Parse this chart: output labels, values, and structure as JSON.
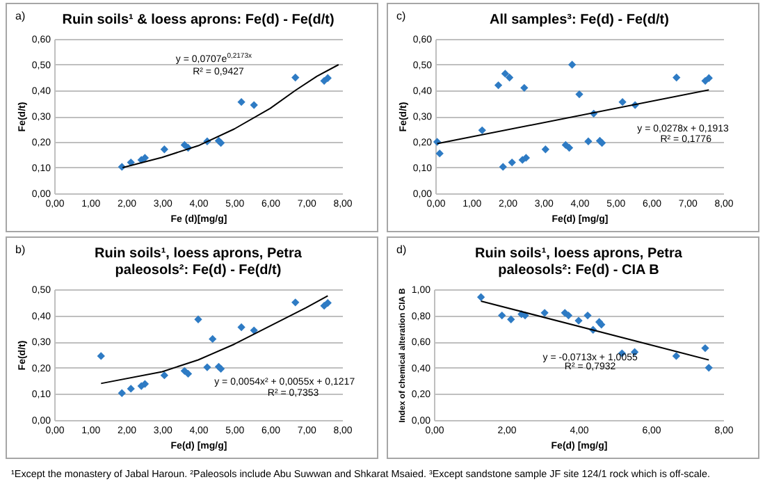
{
  "chart_data": [
    {
      "type": "scatter",
      "title": "Ruin soils¹ & loess aprons: Fe(d) - Fe(d/t)",
      "xlabel": "Fe (d)[mg/g]",
      "ylabel": "Fe(d/t)",
      "annotations": [
        "a)",
        "y = 0,0707e$^{0,2173x}$",
        "R² = 0,9427"
      ],
      "xlim": [
        0,
        8
      ],
      "xticks": [
        {
          "value": 0,
          "label": "0,00"
        },
        {
          "value": 1,
          "label": "1,00"
        },
        {
          "value": 2,
          "label": "2,00"
        },
        {
          "value": 3,
          "label": "3,00"
        },
        {
          "value": 4,
          "label": "4,00"
        },
        {
          "value": 5,
          "label": "5,00"
        },
        {
          "value": 6,
          "label": "6,00"
        },
        {
          "value": 7,
          "label": "7,00"
        },
        {
          "value": 8,
          "label": "8,00"
        }
      ],
      "ylim": [
        0,
        0.6
      ],
      "yticks": [
        {
          "value": 0,
          "label": "0,00"
        },
        {
          "value": 0.1,
          "label": "0,10"
        },
        {
          "value": 0.2,
          "label": "0,20"
        },
        {
          "value": 0.3,
          "label": "0,30"
        },
        {
          "value": 0.4,
          "label": "0,40"
        },
        {
          "value": 0.5,
          "label": "0,50"
        },
        {
          "value": 0.6,
          "label": "0,60"
        }
      ],
      "grid": "y",
      "line_style": "solid",
      "series": [
        {
          "type": "scatter",
          "marker": "diamond",
          "color": "#2e7bc4",
          "x": [
            1.88,
            2.13,
            2.42,
            2.52,
            3.06,
            3.62,
            3.72,
            4.25,
            4.57,
            4.63,
            5.2,
            5.55,
            6.7,
            7.5,
            7.6
          ],
          "values": [
            0.103,
            0.12,
            0.13,
            0.138,
            0.171,
            0.188,
            0.177,
            0.202,
            0.204,
            0.196,
            0.355,
            0.343,
            0.45,
            0.437,
            0.448
          ]
        },
        {
          "type": "line",
          "color": "#000000",
          "x": [
            1.9,
            3,
            4,
            5,
            6,
            6.7,
            7.3,
            7.9
          ],
          "values": [
            0.1,
            0.14,
            0.185,
            0.25,
            0.33,
            0.4,
            0.455,
            0.5
          ]
        }
      ]
    },
    {
      "type": "scatter",
      "title": "All samples³: Fe(d) - Fe(d/t)",
      "xlabel": "Fe(d) [mg/g]",
      "ylabel": "Fe(d/t)",
      "annotations": [
        "c)",
        "y = 0,0278x + 0,1913",
        "R² = 0,1776"
      ],
      "xlim": [
        0,
        8
      ],
      "xticks": [
        {
          "value": 0,
          "label": "0,00"
        },
        {
          "value": 1,
          "label": "1,00"
        },
        {
          "value": 2,
          "label": "2,00"
        },
        {
          "value": 3,
          "label": "3,00"
        },
        {
          "value": 4,
          "label": "4,00"
        },
        {
          "value": 5,
          "label": "5,00"
        },
        {
          "value": 6,
          "label": "6,00"
        },
        {
          "value": 7,
          "label": "7,00"
        },
        {
          "value": 8,
          "label": "8,00"
        }
      ],
      "ylim": [
        0,
        0.6
      ],
      "yticks": [
        {
          "value": 0,
          "label": "0,00"
        },
        {
          "value": 0.1,
          "label": "0,10"
        },
        {
          "value": 0.2,
          "label": "0,20"
        },
        {
          "value": 0.3,
          "label": "0,30"
        },
        {
          "value": 0.4,
          "label": "0,40"
        },
        {
          "value": 0.5,
          "label": "0,50"
        },
        {
          "value": 0.6,
          "label": "0,60"
        }
      ],
      "grid": "y",
      "line_style": "solid",
      "series": [
        {
          "type": "scatter",
          "marker": "diamond",
          "color": "#2e7bc4",
          "x": [
            0.05,
            0.12,
            1.3,
            1.75,
            1.94,
            2.06,
            2.47,
            1.88,
            2.13,
            2.42,
            2.52,
            3.06,
            3.62,
            3.72,
            3.8,
            4.0,
            4.25,
            4.4,
            4.57,
            4.63,
            5.2,
            5.55,
            6.7,
            7.5,
            7.6
          ],
          "values": [
            0.2,
            0.155,
            0.245,
            0.42,
            0.465,
            0.45,
            0.41,
            0.103,
            0.12,
            0.13,
            0.138,
            0.171,
            0.188,
            0.177,
            0.5,
            0.385,
            0.202,
            0.31,
            0.204,
            0.196,
            0.355,
            0.343,
            0.45,
            0.437,
            0.448
          ]
        },
        {
          "type": "line",
          "color": "#000000",
          "x": [
            0.05,
            7.6
          ],
          "values": [
            0.193,
            0.402
          ]
        }
      ]
    },
    {
      "type": "scatter",
      "title": "Ruin soils¹, loess aprons, Petra paleosols²: Fe(d) - Fe(d/t)",
      "xlabel": "Fe(d) [mg/g]",
      "ylabel": "Fe(d/t)",
      "annotations": [
        "b)",
        "y = 0,0054x² + 0,0055x + 0,1217",
        "R² = 0,7353"
      ],
      "xlim": [
        0,
        8
      ],
      "xticks": [
        {
          "value": 0,
          "label": "0,00"
        },
        {
          "value": 1,
          "label": "1,00"
        },
        {
          "value": 2,
          "label": "2,00"
        },
        {
          "value": 3,
          "label": "3,00"
        },
        {
          "value": 4,
          "label": "4,00"
        },
        {
          "value": 5,
          "label": "5,00"
        },
        {
          "value": 6,
          "label": "6,00"
        },
        {
          "value": 7,
          "label": "7,00"
        },
        {
          "value": 8,
          "label": "8,00"
        }
      ],
      "ylim": [
        0,
        0.5
      ],
      "yticks": [
        {
          "value": 0,
          "label": "0,00"
        },
        {
          "value": 0.1,
          "label": "0,10"
        },
        {
          "value": 0.2,
          "label": "0,20"
        },
        {
          "value": 0.3,
          "label": "0,30"
        },
        {
          "value": 0.4,
          "label": "0,40"
        },
        {
          "value": 0.5,
          "label": "0,50"
        }
      ],
      "grid": "y",
      "line_style": "solid",
      "series": [
        {
          "type": "scatter",
          "marker": "diamond",
          "color": "#2e7bc4",
          "x": [
            1.3,
            1.88,
            2.13,
            2.42,
            2.52,
            3.06,
            3.62,
            3.72,
            4.0,
            4.25,
            4.4,
            4.57,
            4.63,
            5.2,
            5.55,
            6.7,
            7.5,
            7.6
          ],
          "values": [
            0.245,
            0.103,
            0.12,
            0.13,
            0.138,
            0.171,
            0.188,
            0.177,
            0.385,
            0.202,
            0.31,
            0.204,
            0.196,
            0.355,
            0.343,
            0.45,
            0.437,
            0.448
          ]
        },
        {
          "type": "line",
          "color": "#000000",
          "x": [
            1.3,
            3,
            4,
            5,
            6,
            7,
            7.6
          ],
          "values": [
            0.14,
            0.185,
            0.23,
            0.29,
            0.36,
            0.43,
            0.475
          ]
        }
      ]
    },
    {
      "type": "scatter",
      "title": "Ruin soils¹, loess aprons, Petra paleosols²: Fe(d) - CIA B",
      "xlabel": "Fe(d) [mg/g]",
      "ylabel": "Index of chemical alteration CIA B",
      "annotations": [
        "d)",
        "y = -0,0713x + 1,0055",
        "R² = 0,7932",
        "¹Except the monastery of Jabal Haroun. ²Paleosols include Abu Suwwan and Shkarat Msaied. ³Except sandstone sample JF site 124/1 rock which is off-scale."
      ],
      "xlim": [
        0,
        8
      ],
      "xticks": [
        {
          "value": 0,
          "label": "0,00"
        },
        {
          "value": 2,
          "label": "2,00"
        },
        {
          "value": 4,
          "label": "4,00"
        },
        {
          "value": 6,
          "label": "6,00"
        },
        {
          "value": 8,
          "label": "8,00"
        }
      ],
      "ylim": [
        0,
        1
      ],
      "yticks": [
        {
          "value": 0,
          "label": "0,00"
        },
        {
          "value": 0.2,
          "label": "0,20"
        },
        {
          "value": 0.4,
          "label": "0,40"
        },
        {
          "value": 0.6,
          "label": "0,60"
        },
        {
          "value": 0.8,
          "label": "0,80"
        },
        {
          "value": 1,
          "label": "1,00"
        }
      ],
      "grid": "y",
      "line_style": "solid",
      "series": [
        {
          "type": "scatter",
          "marker": "diamond",
          "color": "#2e7bc4",
          "x": [
            1.3,
            1.88,
            2.13,
            2.42,
            2.52,
            3.06,
            3.62,
            3.72,
            4.0,
            4.25,
            4.4,
            4.57,
            4.63,
            5.2,
            5.55,
            6.7,
            7.5,
            7.6
          ],
          "values": [
            0.94,
            0.8,
            0.77,
            0.81,
            0.8,
            0.82,
            0.82,
            0.8,
            0.76,
            0.8,
            0.69,
            0.75,
            0.73,
            0.51,
            0.52,
            0.49,
            0.55,
            0.4
          ]
        },
        {
          "type": "line",
          "color": "#000000",
          "x": [
            1.3,
            7.6
          ],
          "values": [
            0.91,
            0.46
          ]
        }
      ]
    }
  ]
}
